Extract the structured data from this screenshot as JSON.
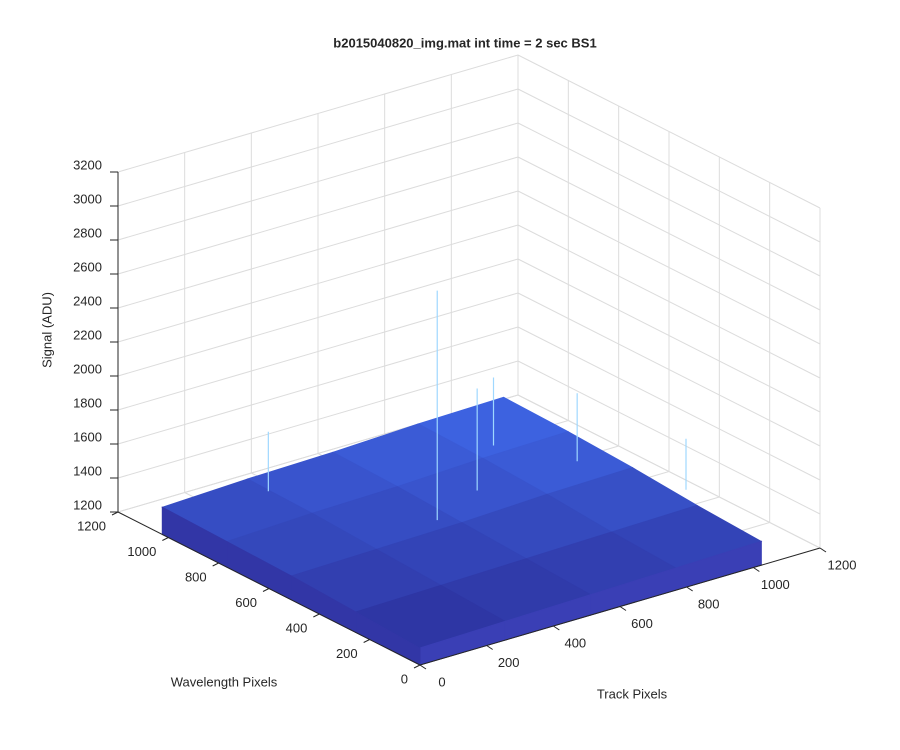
{
  "chart_data": {
    "type": "surface3d",
    "title": "b2015040820_img.mat int time = 2 sec   BS1",
    "xlabel": "Track Pixels",
    "ylabel": "Wavelength Pixels",
    "zlabel": "Signal (ADU)",
    "xlim": [
      0,
      1200
    ],
    "ylim": [
      0,
      1200
    ],
    "zlim": [
      1200,
      3200
    ],
    "xticks": [
      0,
      200,
      400,
      600,
      800,
      1000,
      1200
    ],
    "yticks": [
      0,
      200,
      400,
      600,
      800,
      1000,
      1200
    ],
    "zticks": [
      1200,
      1400,
      1600,
      1800,
      2000,
      2200,
      2400,
      2600,
      2800,
      3000,
      3200
    ],
    "grid": true,
    "surface": {
      "x": [
        0,
        256,
        512,
        768,
        1024
      ],
      "y": [
        0,
        256,
        512,
        768,
        1024
      ],
      "z": [
        [
          1300,
          1310,
          1320,
          1330,
          1340
        ],
        [
          1320,
          1330,
          1340,
          1350,
          1360
        ],
        [
          1340,
          1350,
          1360,
          1380,
          1390
        ],
        [
          1350,
          1370,
          1380,
          1400,
          1410
        ],
        [
          1360,
          1380,
          1390,
          1410,
          1420
        ]
      ],
      "colors": [
        "#2c2f9a",
        "#3f67e6"
      ]
    },
    "spikes": [
      {
        "x": 513,
        "y": 611,
        "z": 2650
      },
      {
        "x": 700,
        "y": 700,
        "z": 1900
      },
      {
        "x": 900,
        "y": 900,
        "z": 1700
      },
      {
        "x": 300,
        "y": 1000,
        "z": 1650
      },
      {
        "x": 1100,
        "y": 400,
        "z": 1600
      },
      {
        "x": 1000,
        "y": 700,
        "z": 1700
      }
    ],
    "spike_color": "#9fd8ff"
  }
}
